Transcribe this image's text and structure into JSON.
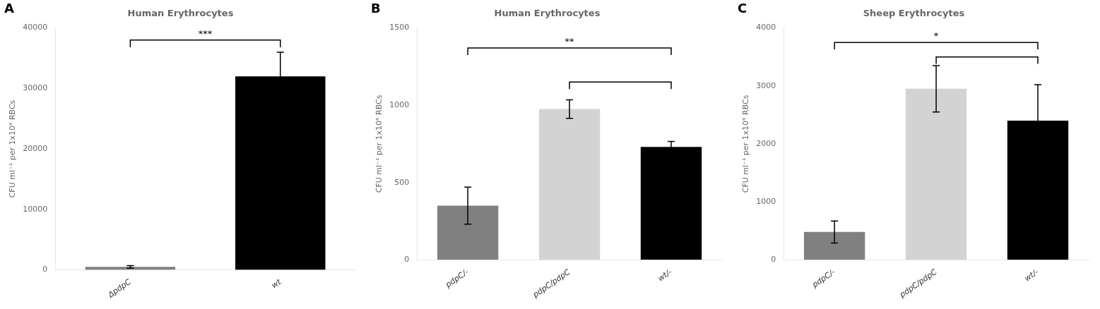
{
  "chart_data": [
    {
      "type": "bar",
      "title": "Human Erythrocytes",
      "categories": [
        "ΔpdpC",
        "wt"
      ],
      "values": [
        500,
        32000
      ],
      "errors": [
        200,
        4000
      ],
      "colors": [
        "#808080",
        "#000000"
      ],
      "ylim": [
        0,
        40000
      ],
      "yticks": [
        0,
        10000,
        20000,
        30000,
        40000
      ],
      "ylabel": "CFU ml⁻¹ per 1x10⁶ RBCs",
      "grid": false,
      "annotations": [
        {
          "text": "A"
        },
        {
          "from": "ΔpdpC",
          "to": "wt",
          "y": 38000,
          "text": "***"
        }
      ]
    },
    {
      "type": "bar",
      "title": "Human Erythrocytes",
      "categories": [
        "pdpC/-",
        "pdpC/pdpC",
        "wt/-"
      ],
      "values": [
        350,
        975,
        730
      ],
      "errors": [
        120,
        60,
        35
      ],
      "colors": [
        "#808080",
        "#d3d3d3",
        "#000000"
      ],
      "ylim": [
        0,
        1500
      ],
      "yticks": [
        0,
        500,
        1000,
        1500
      ],
      "ylabel": "CFU ml⁻¹ per 1x10⁶ RBCs",
      "grid": false,
      "annotations": [
        {
          "text": "B"
        },
        {
          "from": "pdpC/-",
          "to": "wt/-",
          "y": 1370,
          "text": "**"
        },
        {
          "from": "pdpC/pdpC",
          "to": "wt/-",
          "y": 1150
        }
      ]
    },
    {
      "type": "bar",
      "title": "Sheep Erythrocytes",
      "categories": [
        "pdpC/-",
        "pdpC/pdpC",
        "wt/-"
      ],
      "values": [
        480,
        2950,
        2400
      ],
      "errors": [
        190,
        400,
        620
      ],
      "colors": [
        "#808080",
        "#d3d3d3",
        "#000000"
      ],
      "ylim": [
        0,
        4000
      ],
      "yticks": [
        0,
        1000,
        2000,
        3000,
        4000
      ],
      "ylabel": "CFU ml⁻¹ per 1x10⁶ RBCs",
      "grid": false,
      "annotations": [
        {
          "text": "C"
        },
        {
          "from": "pdpC/-",
          "to": "wt/-",
          "y": 3750,
          "text": "*"
        },
        {
          "from": "pdpC/pdpC",
          "to": "wt/-",
          "y": 3500
        }
      ]
    }
  ]
}
